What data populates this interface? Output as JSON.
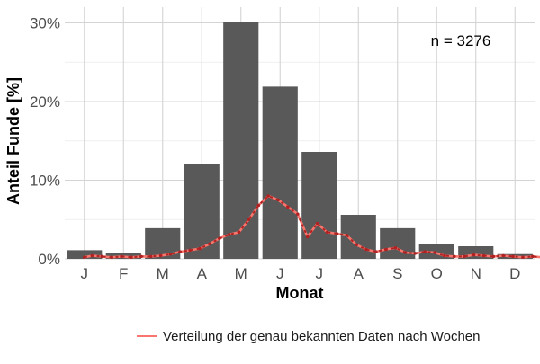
{
  "chart_data": {
    "type": "bar",
    "title": "",
    "xlabel": "Monat",
    "ylabel": "Anteil Funde [%]",
    "categories": [
      "J",
      "F",
      "M",
      "A",
      "M",
      "J",
      "J",
      "A",
      "S",
      "O",
      "N",
      "D"
    ],
    "values": [
      1.1,
      0.8,
      3.9,
      12.0,
      30.1,
      21.9,
      13.6,
      5.6,
      3.9,
      1.9,
      1.6,
      0.6
    ],
    "ylim": [
      0,
      32
    ],
    "yticks": [
      0,
      10,
      20,
      30
    ],
    "ytick_labels": [
      "0%",
      "10%",
      "20%",
      "30%"
    ],
    "grid": true,
    "annotation": "n = 3276",
    "bar_color": "#595959",
    "line_series": {
      "name": "Verteilung der genau bekannten Daten nach Wochen",
      "color": "#f8766d",
      "marker_color": "#b22222",
      "x_month_index": [
        0.0,
        0.2,
        0.45,
        0.7,
        0.95,
        1.2,
        1.45,
        1.7,
        1.95,
        2.2,
        2.45,
        2.7,
        2.95,
        3.2,
        3.45,
        3.7,
        3.95,
        4.2,
        4.45,
        4.7,
        4.95,
        5.2,
        5.45,
        5.7,
        5.95,
        6.2,
        6.45,
        6.7,
        6.95,
        7.2,
        7.45,
        7.7,
        7.95,
        8.2,
        8.45,
        8.7,
        8.95,
        9.2,
        9.45,
        9.7,
        9.95,
        10.2,
        10.45,
        10.7,
        10.95,
        11.2,
        11.45,
        11.7,
        11.95
      ],
      "values": [
        0.2,
        0.4,
        0.3,
        0.2,
        0.3,
        0.2,
        0.3,
        0.3,
        0.4,
        0.6,
        0.9,
        1.1,
        1.3,
        1.9,
        2.6,
        3.1,
        3.4,
        5.0,
        6.8,
        8.0,
        7.5,
        6.6,
        5.7,
        2.8,
        4.5,
        3.4,
        3.2,
        3.0,
        1.8,
        1.2,
        0.9,
        1.2,
        1.4,
        0.8,
        0.7,
        0.9,
        0.8,
        0.4,
        0.3,
        0.3,
        0.5,
        0.4,
        0.3,
        0.4,
        0.3,
        0.2,
        0.3,
        0.2,
        0.2
      ]
    }
  }
}
